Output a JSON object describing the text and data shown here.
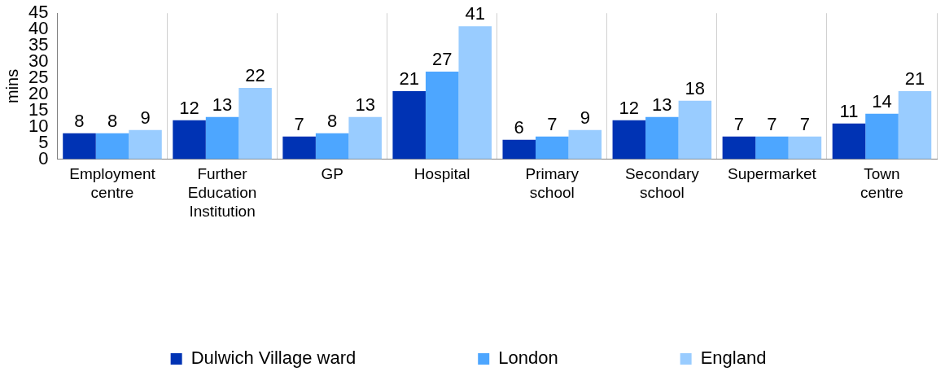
{
  "chart_data": {
    "type": "bar",
    "ylabel": "mins",
    "categories": [
      "Employment centre",
      "Further Education Institution",
      "GP",
      "Hospital",
      "Primary school",
      "Secondary school",
      "Supermarket",
      "Town centre"
    ],
    "series": [
      {
        "name": "Dulwich Village ward",
        "color": "#0033b4",
        "values": [
          8,
          12,
          7,
          21,
          6,
          12,
          7,
          11
        ]
      },
      {
        "name": "London",
        "color": "#4da6ff",
        "values": [
          8,
          13,
          8,
          27,
          7,
          13,
          7,
          14
        ]
      },
      {
        "name": "England",
        "color": "#99ccff",
        "values": [
          9,
          22,
          13,
          41,
          9,
          18,
          7,
          21
        ]
      }
    ],
    "ylim": [
      0,
      45
    ],
    "yticks": [
      0,
      5,
      10,
      15,
      20,
      25,
      30,
      35,
      40,
      45
    ],
    "grid": "x",
    "legend": "bottom",
    "data_labels": true
  }
}
